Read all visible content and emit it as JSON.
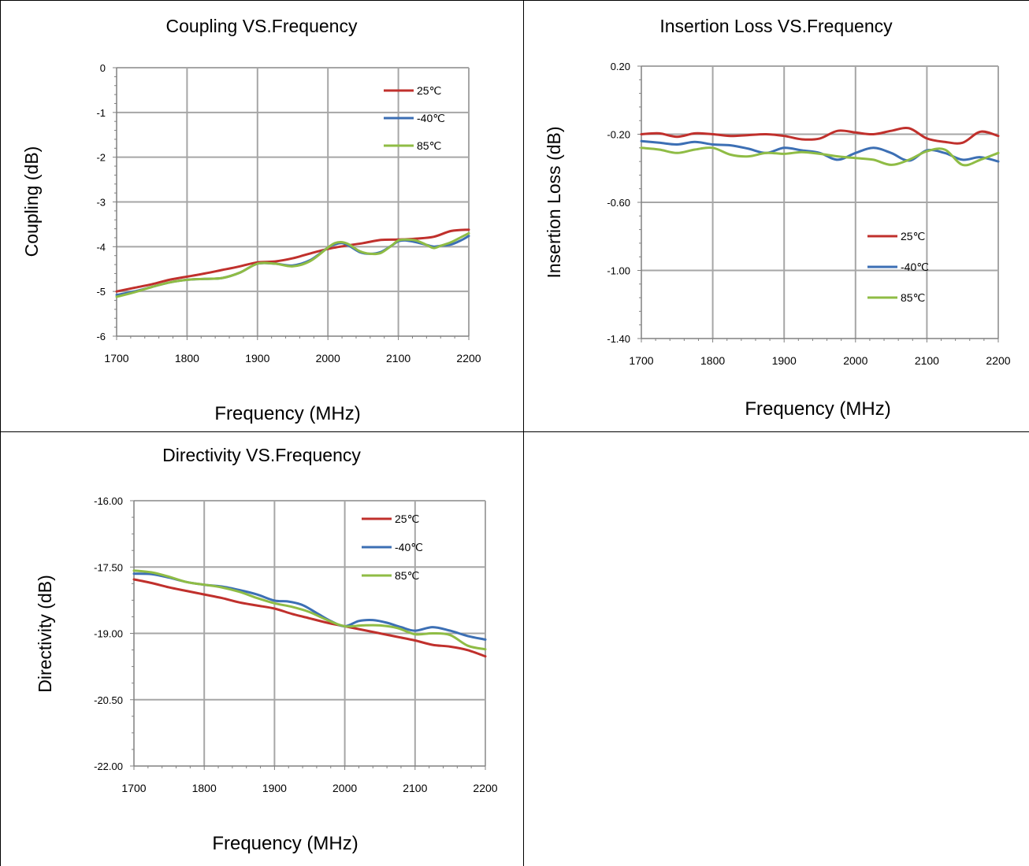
{
  "colors": {
    "s25": "#c0302c",
    "s40": "#3c6fb4",
    "s85": "#8fbc45",
    "grid": "#a6a6a6",
    "axis": "#808080"
  },
  "chart_data": [
    {
      "type": "line",
      "title": "Coupling VS.Frequency",
      "xlabel": "Frequency (MHz)",
      "ylabel": "Coupling  (dB)",
      "xlim": [
        1700,
        2200
      ],
      "ylim": [
        -6,
        0
      ],
      "x_ticks": [
        1700,
        1800,
        1900,
        2000,
        2100,
        2200
      ],
      "x_tick_labels": [
        "1700",
        "1800",
        "1900",
        "2000",
        "2100",
        "2200"
      ],
      "y_ticks": [
        0,
        -1,
        -2,
        -3,
        -4,
        -5,
        -6
      ],
      "y_tick_labels": [
        "0",
        "-1",
        "-2",
        "-3",
        "-4",
        "-5",
        "-6"
      ],
      "grid": true,
      "legend_position": "top-right",
      "series": [
        {
          "name": "25℃",
          "x": [
            1700,
            1725,
            1750,
            1775,
            1800,
            1825,
            1850,
            1875,
            1900,
            1925,
            1950,
            1975,
            2000,
            2025,
            2050,
            2075,
            2100,
            2125,
            2150,
            2175,
            2200
          ],
          "y": [
            -5.0,
            -4.92,
            -4.84,
            -4.74,
            -4.67,
            -4.6,
            -4.52,
            -4.44,
            -4.35,
            -4.33,
            -4.26,
            -4.15,
            -4.05,
            -3.98,
            -3.92,
            -3.85,
            -3.84,
            -3.82,
            -3.78,
            -3.65,
            -3.62
          ]
        },
        {
          "name": "-40℃",
          "x": [
            1700,
            1725,
            1750,
            1775,
            1800,
            1825,
            1850,
            1875,
            1900,
            1925,
            1950,
            1975,
            2000,
            2010,
            2020,
            2030,
            2045,
            2060,
            2075,
            2090,
            2100,
            2110,
            2125,
            2140,
            2150,
            2160,
            2175,
            2190,
            2200
          ],
          "y": [
            -5.08,
            -5.0,
            -4.9,
            -4.8,
            -4.74,
            -4.72,
            -4.7,
            -4.58,
            -4.38,
            -4.38,
            -4.42,
            -4.3,
            -4.02,
            -3.95,
            -3.92,
            -3.98,
            -4.12,
            -4.16,
            -4.12,
            -3.98,
            -3.88,
            -3.86,
            -3.9,
            -3.96,
            -4.0,
            -3.98,
            -3.95,
            -3.85,
            -3.76
          ]
        },
        {
          "name": "85℃",
          "x": [
            1700,
            1725,
            1750,
            1775,
            1800,
            1825,
            1850,
            1875,
            1900,
            1925,
            1950,
            1975,
            2000,
            2010,
            2020,
            2030,
            2045,
            2060,
            2075,
            2090,
            2100,
            2110,
            2125,
            2140,
            2150,
            2160,
            2175,
            2190,
            2200
          ],
          "y": [
            -5.12,
            -5.02,
            -4.9,
            -4.8,
            -4.74,
            -4.72,
            -4.7,
            -4.58,
            -4.38,
            -4.38,
            -4.44,
            -4.32,
            -4.02,
            -3.92,
            -3.9,
            -3.95,
            -4.1,
            -4.16,
            -4.14,
            -3.98,
            -3.86,
            -3.84,
            -3.86,
            -3.96,
            -4.03,
            -3.98,
            -3.9,
            -3.78,
            -3.7
          ]
        }
      ]
    },
    {
      "type": "line",
      "title": "Insertion Loss VS.Frequency",
      "xlabel": "Frequency (MHz)",
      "ylabel": "Insertion Loss (dB)",
      "xlim": [
        1700,
        2200
      ],
      "ylim": [
        -1.4,
        0.2
      ],
      "x_ticks": [
        1700,
        1800,
        1900,
        2000,
        2100,
        2200
      ],
      "x_tick_labels": [
        "1700",
        "1800",
        "1900",
        "2000",
        "2100",
        "2200"
      ],
      "y_ticks": [
        0.2,
        -0.2,
        -0.6,
        -1.0,
        -1.4
      ],
      "y_tick_labels": [
        "0.20",
        "-0.20",
        "-0.60",
        "-1.00",
        "-1.40"
      ],
      "grid": true,
      "legend_position": "center-right",
      "series": [
        {
          "name": "25℃",
          "x": [
            1700,
            1725,
            1750,
            1775,
            1800,
            1825,
            1850,
            1875,
            1900,
            1925,
            1950,
            1975,
            2000,
            2025,
            2050,
            2075,
            2100,
            2125,
            2150,
            2175,
            2200
          ],
          "y": [
            -0.2,
            -0.195,
            -0.215,
            -0.195,
            -0.2,
            -0.21,
            -0.205,
            -0.2,
            -0.21,
            -0.23,
            -0.225,
            -0.18,
            -0.19,
            -0.2,
            -0.18,
            -0.165,
            -0.225,
            -0.245,
            -0.25,
            -0.185,
            -0.21
          ]
        },
        {
          "name": "-40℃",
          "x": [
            1700,
            1725,
            1750,
            1775,
            1800,
            1825,
            1850,
            1875,
            1900,
            1925,
            1950,
            1975,
            2000,
            2025,
            2050,
            2075,
            2100,
            2125,
            2150,
            2175,
            2200
          ],
          "y": [
            -0.24,
            -0.25,
            -0.26,
            -0.245,
            -0.26,
            -0.265,
            -0.285,
            -0.31,
            -0.28,
            -0.295,
            -0.31,
            -0.35,
            -0.31,
            -0.28,
            -0.31,
            -0.355,
            -0.295,
            -0.31,
            -0.35,
            -0.335,
            -0.36
          ]
        },
        {
          "name": "85℃",
          "x": [
            1700,
            1725,
            1750,
            1775,
            1800,
            1825,
            1850,
            1875,
            1900,
            1925,
            1950,
            1975,
            2000,
            2025,
            2050,
            2075,
            2100,
            2125,
            2150,
            2175,
            2200
          ],
          "y": [
            -0.28,
            -0.29,
            -0.31,
            -0.29,
            -0.28,
            -0.32,
            -0.33,
            -0.31,
            -0.315,
            -0.305,
            -0.315,
            -0.33,
            -0.34,
            -0.35,
            -0.38,
            -0.35,
            -0.3,
            -0.29,
            -0.38,
            -0.35,
            -0.31
          ]
        }
      ]
    },
    {
      "type": "line",
      "title": "Directivity VS.Frequency",
      "xlabel": "Frequency (MHz)",
      "ylabel": "Directivity (dB)",
      "xlim": [
        1700,
        2200
      ],
      "ylim": [
        -22,
        -16
      ],
      "x_ticks": [
        1700,
        1800,
        1900,
        2000,
        2100,
        2200
      ],
      "x_tick_labels": [
        "1700",
        "1800",
        "1900",
        "2000",
        "2100",
        "2200"
      ],
      "y_ticks": [
        -16,
        -17.5,
        -19,
        -20.5,
        -22
      ],
      "y_tick_labels": [
        "-16.00",
        "-17.50",
        "-19.00",
        "-20.50",
        "-22.00"
      ],
      "grid": true,
      "legend_position": "top-right",
      "series": [
        {
          "name": "25℃",
          "x": [
            1700,
            1725,
            1750,
            1775,
            1800,
            1825,
            1850,
            1875,
            1900,
            1925,
            1950,
            1975,
            2000,
            2025,
            2050,
            2075,
            2100,
            2125,
            2150,
            2175,
            2200
          ],
          "y": [
            -17.78,
            -17.86,
            -17.96,
            -18.04,
            -18.12,
            -18.2,
            -18.3,
            -18.37,
            -18.44,
            -18.56,
            -18.66,
            -18.76,
            -18.84,
            -18.92,
            -19.0,
            -19.08,
            -19.16,
            -19.26,
            -19.3,
            -19.38,
            -19.52
          ]
        },
        {
          "name": "-40℃",
          "x": [
            1700,
            1725,
            1750,
            1775,
            1800,
            1825,
            1850,
            1875,
            1900,
            1920,
            1940,
            1960,
            1980,
            2000,
            2020,
            2040,
            2060,
            2080,
            2100,
            2125,
            2150,
            2175,
            2200
          ],
          "y": [
            -17.65,
            -17.66,
            -17.74,
            -17.84,
            -17.9,
            -17.94,
            -18.02,
            -18.12,
            -18.26,
            -18.28,
            -18.36,
            -18.54,
            -18.72,
            -18.84,
            -18.72,
            -18.7,
            -18.76,
            -18.86,
            -18.94,
            -18.86,
            -18.94,
            -19.06,
            -19.14
          ]
        },
        {
          "name": "85℃",
          "x": [
            1700,
            1725,
            1750,
            1775,
            1800,
            1825,
            1850,
            1875,
            1900,
            1925,
            1950,
            1975,
            2000,
            2025,
            2050,
            2075,
            2100,
            2125,
            2150,
            2175,
            2200
          ],
          "y": [
            -17.58,
            -17.62,
            -17.72,
            -17.84,
            -17.9,
            -17.96,
            -18.06,
            -18.2,
            -18.32,
            -18.4,
            -18.52,
            -18.7,
            -18.84,
            -18.82,
            -18.82,
            -18.88,
            -19.02,
            -19.0,
            -19.04,
            -19.28,
            -19.36
          ]
        }
      ]
    }
  ]
}
